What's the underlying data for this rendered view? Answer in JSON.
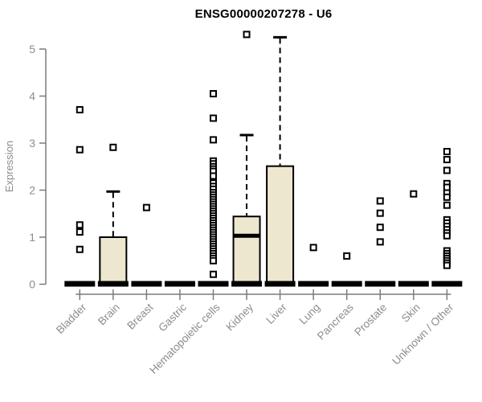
{
  "title": "ENSG00000207278 - U6",
  "colors": {
    "box_fill": "#ECE7CE",
    "box_stroke": "#000000",
    "axis": "#7b7b7b",
    "tick_label": "#8c8c8c",
    "title_color": "#000000"
  },
  "chart_data": {
    "type": "boxplot",
    "title": "ENSG00000207278 - U6",
    "xlabel": "",
    "ylabel": "Expression",
    "ylim": [
      0,
      5
    ],
    "yticks": [
      0,
      1,
      2,
      3,
      4,
      5
    ],
    "grid": false,
    "legend": "none",
    "categories": [
      "Bladder",
      "Brain",
      "Breast",
      "Gastric",
      "Hematopoietic cells",
      "Kidney",
      "Liver",
      "Lung",
      "Pancreas",
      "Prostate",
      "Skin",
      "Unknown / Other"
    ],
    "series": [
      {
        "category": "Bladder",
        "q1": 0,
        "median": 0,
        "q3": 0,
        "whisker_low": 0,
        "whisker_high": 0,
        "outliers": [
          3.71,
          2.86,
          1.26,
          1.11,
          0.74
        ]
      },
      {
        "category": "Brain",
        "q1": 0,
        "median": 0,
        "q3": 1.0,
        "whisker_low": 0,
        "whisker_high": 1.97,
        "outliers": [
          2.91
        ]
      },
      {
        "category": "Breast",
        "q1": 0,
        "median": 0,
        "q3": 0,
        "whisker_low": 0,
        "whisker_high": 0,
        "outliers": [
          1.63
        ]
      },
      {
        "category": "Gastric",
        "q1": 0,
        "median": 0,
        "q3": 0,
        "whisker_low": 0,
        "whisker_high": 0,
        "outliers": []
      },
      {
        "category": "Hematopoietic cells",
        "q1": 0,
        "median": 0,
        "q3": 0,
        "whisker_low": 0,
        "whisker_high": 0,
        "outliers": [
          4.05,
          3.53,
          3.07,
          2.62,
          2.56,
          2.5,
          2.45,
          2.4,
          2.3,
          2.15,
          2.08,
          2.02,
          1.95,
          1.9,
          1.85,
          1.8,
          1.75,
          1.7,
          1.65,
          1.6,
          1.55,
          1.5,
          1.45,
          1.4,
          1.35,
          1.3,
          1.25,
          1.2,
          1.15,
          1.1,
          1.05,
          1.0,
          0.95,
          0.9,
          0.85,
          0.8,
          0.75,
          0.7,
          0.65,
          0.6,
          0.55,
          0.5,
          0.21
        ]
      },
      {
        "category": "Kidney",
        "q1": 0,
        "median": 1.03,
        "q3": 1.44,
        "whisker_low": 0,
        "whisker_high": 3.17,
        "outliers": [
          5.31
        ]
      },
      {
        "category": "Liver",
        "q1": 0,
        "median": 0,
        "q3": 2.51,
        "whisker_low": 0,
        "whisker_high": 5.25,
        "outliers": []
      },
      {
        "category": "Lung",
        "q1": 0,
        "median": 0,
        "q3": 0,
        "whisker_low": 0,
        "whisker_high": 0,
        "outliers": [
          0.78
        ]
      },
      {
        "category": "Pancreas",
        "q1": 0,
        "median": 0,
        "q3": 0,
        "whisker_low": 0,
        "whisker_high": 0,
        "outliers": [
          0.6
        ]
      },
      {
        "category": "Prostate",
        "q1": 0,
        "median": 0,
        "q3": 0,
        "whisker_low": 0,
        "whisker_high": 0,
        "outliers": [
          1.77,
          1.51,
          1.21,
          0.9
        ]
      },
      {
        "category": "Skin",
        "q1": 0,
        "median": 0,
        "q3": 0,
        "whisker_low": 0,
        "whisker_high": 0,
        "outliers": [
          1.92
        ]
      },
      {
        "category": "Unknown / Other",
        "q1": 0,
        "median": 0,
        "q3": 0,
        "whisker_low": 0,
        "whisker_high": 0,
        "outliers": [
          2.82,
          2.65,
          2.42,
          2.14,
          2.06,
          1.94,
          1.85,
          1.68,
          1.37,
          1.3,
          1.23,
          1.16,
          1.09,
          1.03,
          0.71,
          0.65,
          0.6,
          0.55,
          0.5,
          0.45,
          0.4
        ]
      }
    ]
  }
}
